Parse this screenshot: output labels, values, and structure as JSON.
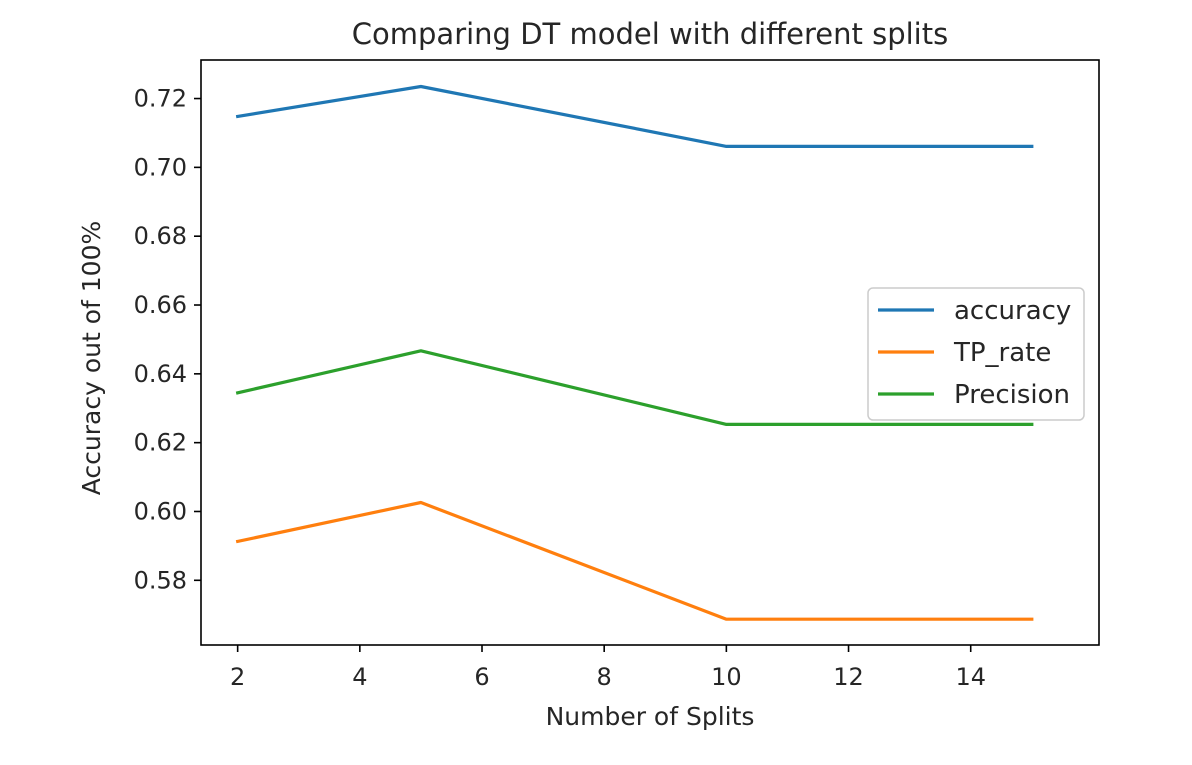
{
  "chart_data": {
    "type": "line",
    "title": "Comparing DT model with different splits",
    "xlabel": "Number of Splits",
    "ylabel": "Accuracy out of 100%",
    "x": [
      2,
      5,
      10,
      15
    ],
    "series": [
      {
        "name": "accuracy",
        "color": "#1f77b4",
        "values": [
          0.7148,
          0.7235,
          0.7061,
          0.7061
        ]
      },
      {
        "name": "TP_rate",
        "color": "#ff7f0e",
        "values": [
          0.5913,
          0.6026,
          0.5687,
          0.5687
        ]
      },
      {
        "name": "Precision",
        "color": "#2ca02c",
        "values": [
          0.6345,
          0.6467,
          0.6253,
          0.6253
        ]
      }
    ],
    "xlim": [
      1.4,
      16.1
    ],
    "ylim": [
      0.5612,
      0.7312
    ],
    "xticks": [
      2,
      4,
      6,
      8,
      10,
      12,
      14
    ],
    "yticks": [
      0.58,
      0.6,
      0.62,
      0.64,
      0.66,
      0.68,
      0.7,
      0.72
    ],
    "grid": false,
    "legend_position": "center-right"
  }
}
